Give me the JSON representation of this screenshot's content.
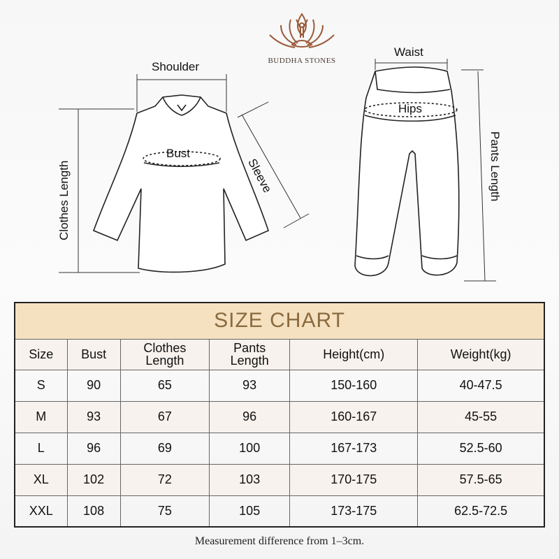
{
  "brand": {
    "name": "BUDDHA STONES",
    "logo_icon": "lotus-meditation-icon"
  },
  "diagram": {
    "top_labels": {
      "shoulder": "Shoulder",
      "bust": "Bust",
      "sleeve": "Sleeve",
      "clothes_length": "Clothes Length"
    },
    "pants_labels": {
      "waist": "Waist",
      "hips": "Hips",
      "pants_length": "Pants Length"
    }
  },
  "size_chart": {
    "title": "SIZE CHART",
    "headers": [
      [
        "Size"
      ],
      [
        "Bust"
      ],
      [
        "Clothes",
        "Length"
      ],
      [
        "Pants",
        "Length"
      ],
      [
        "Height(cm)"
      ],
      [
        "Weight(kg)"
      ]
    ],
    "rows": [
      [
        "S",
        "90",
        "65",
        "93",
        "150-160",
        "40-47.5"
      ],
      [
        "M",
        "93",
        "67",
        "96",
        "160-167",
        "45-55"
      ],
      [
        "L",
        "96",
        "69",
        "100",
        "167-173",
        "52.5-60"
      ],
      [
        "XL",
        "102",
        "72",
        "103",
        "170-175",
        "57.5-65"
      ],
      [
        "XXL",
        "108",
        "75",
        "105",
        "173-175",
        "62.5-72.5"
      ]
    ],
    "colors": {
      "title_bg": "#f5e1c0",
      "title_text": "#8a6a3f",
      "alt_row": "#f7f2ee"
    }
  },
  "note": "Measurement difference from 1–3cm."
}
